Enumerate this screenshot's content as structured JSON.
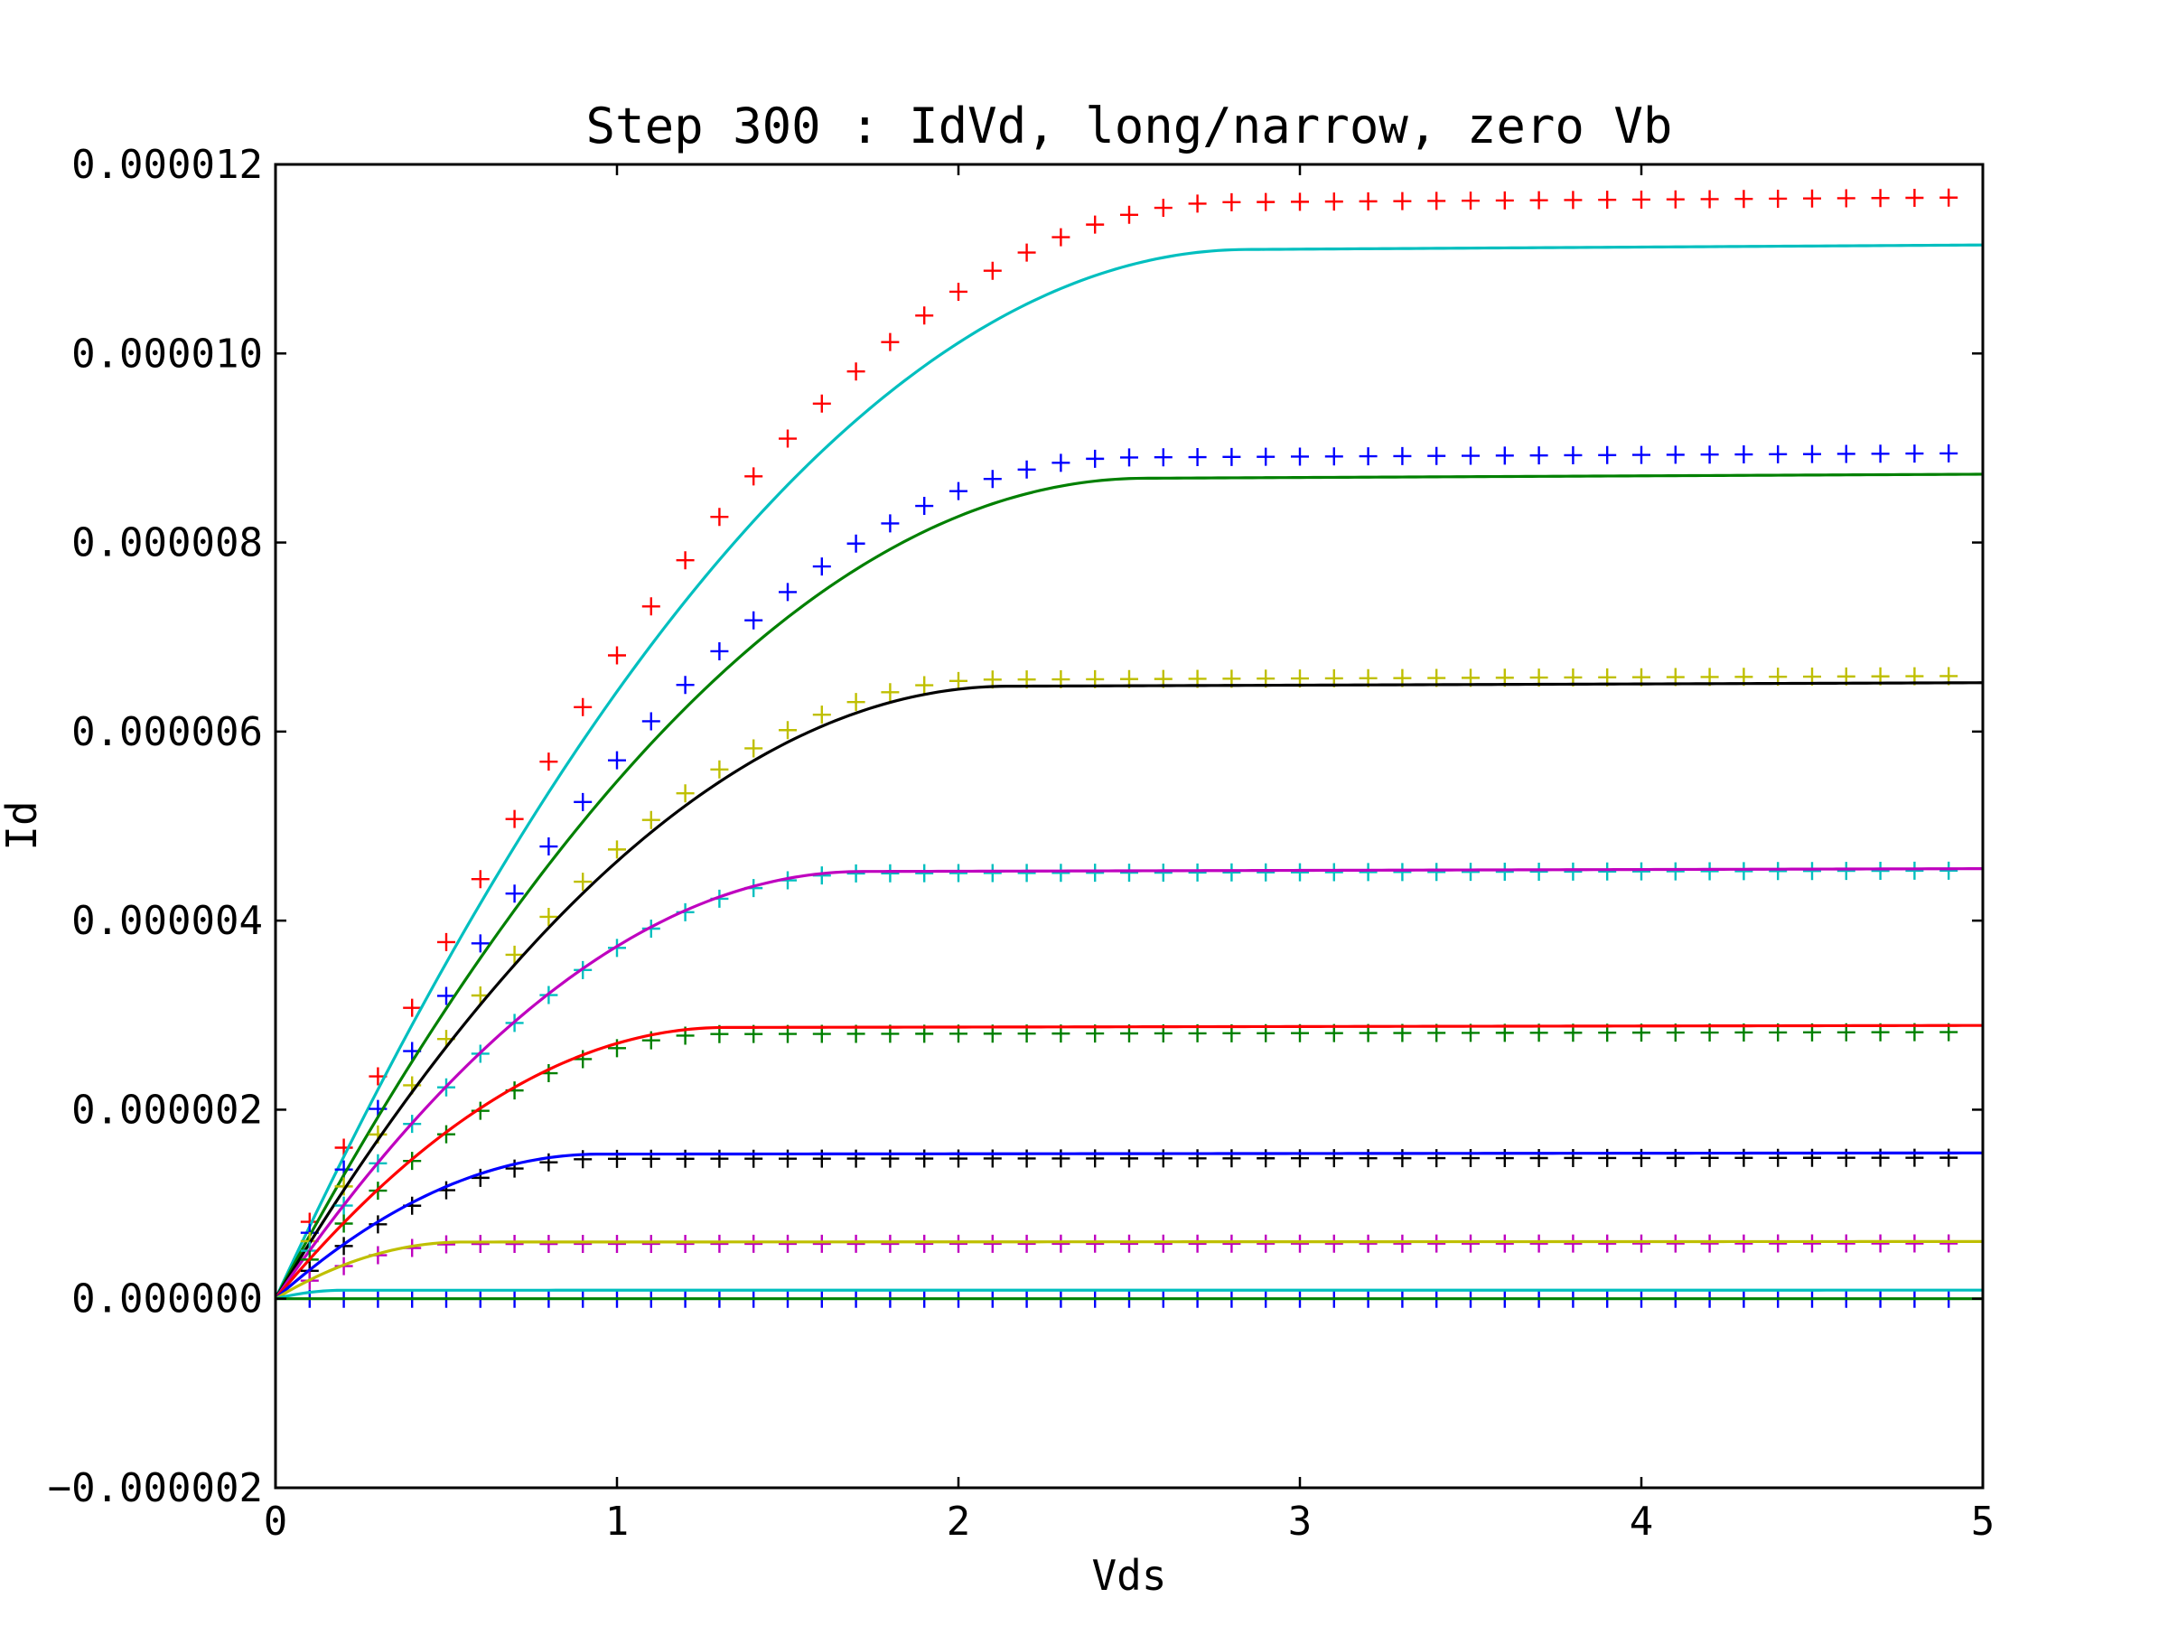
{
  "chart_data": {
    "type": "line",
    "title": "Step 300 : IdVd, long/narrow, zero Vb",
    "xlabel": "Vds",
    "ylabel": "Id",
    "xlim": [
      0,
      5
    ],
    "ylim": [
      -2e-06,
      1.2e-05
    ],
    "xticks": [
      0,
      1,
      2,
      3,
      4,
      5
    ],
    "xtick_labels": [
      "0",
      "1",
      "2",
      "3",
      "4",
      "5"
    ],
    "yticks": [
      -2e-06,
      0,
      2e-06,
      4e-06,
      6e-06,
      8e-06,
      1e-05,
      1.2e-05
    ],
    "ytick_labels": [
      "−0.000002",
      "0.000000",
      "0.000002",
      "0.000004",
      "0.000006",
      "0.000008",
      "0.000010",
      "0.000012"
    ],
    "grid": false,
    "legend": "none",
    "marker_x_step": 0.1,
    "series": [
      {
        "kind": "measured",
        "style": "plus",
        "color": "#ff0000",
        "isat": 1.16e-05,
        "vdsat": 2.8
      },
      {
        "kind": "simulated",
        "style": "line",
        "color": "#00bfbf",
        "isat": 1.11e-05,
        "vdsat": 2.85
      },
      {
        "kind": "measured",
        "style": "plus",
        "color": "#0000ff",
        "isat": 8.9e-06,
        "vdsat": 2.5
      },
      {
        "kind": "simulated",
        "style": "line",
        "color": "#008000",
        "isat": 8.68e-06,
        "vdsat": 2.55
      },
      {
        "kind": "measured",
        "style": "plus",
        "color": "#bfbf00",
        "isat": 6.55e-06,
        "vdsat": 2.1
      },
      {
        "kind": "simulated",
        "style": "line",
        "color": "#000000",
        "isat": 6.48e-06,
        "vdsat": 2.15
      },
      {
        "kind": "measured",
        "style": "plus",
        "color": "#00bfbf",
        "isat": 4.5e-06,
        "vdsat": 1.72
      },
      {
        "kind": "simulated",
        "style": "line",
        "color": "#bf00bf",
        "isat": 4.52e-06,
        "vdsat": 1.72
      },
      {
        "kind": "measured",
        "style": "plus",
        "color": "#008000",
        "isat": 2.8e-06,
        "vdsat": 1.3
      },
      {
        "kind": "simulated",
        "style": "line",
        "color": "#ff0000",
        "isat": 2.87e-06,
        "vdsat": 1.32
      },
      {
        "kind": "measured",
        "style": "plus",
        "color": "#000000",
        "isat": 1.48e-06,
        "vdsat": 0.95
      },
      {
        "kind": "simulated",
        "style": "line",
        "color": "#0000ff",
        "isat": 1.53e-06,
        "vdsat": 0.95
      },
      {
        "kind": "measured",
        "style": "plus",
        "color": "#bf00bf",
        "isat": 5.8e-07,
        "vdsat": 0.55
      },
      {
        "kind": "simulated",
        "style": "line",
        "color": "#bfbf00",
        "isat": 6e-07,
        "vdsat": 0.55
      },
      {
        "kind": "measured",
        "style": "plus",
        "color": "#0000ff",
        "isat": 0.0,
        "vdsat": 0.2
      },
      {
        "kind": "simulated",
        "style": "line",
        "color": "#00bfbf",
        "isat": 9e-08,
        "vdsat": 0.2
      },
      {
        "kind": "simulated",
        "style": "line",
        "color": "#008000",
        "isat": 0.0,
        "vdsat": 0.2
      }
    ]
  }
}
